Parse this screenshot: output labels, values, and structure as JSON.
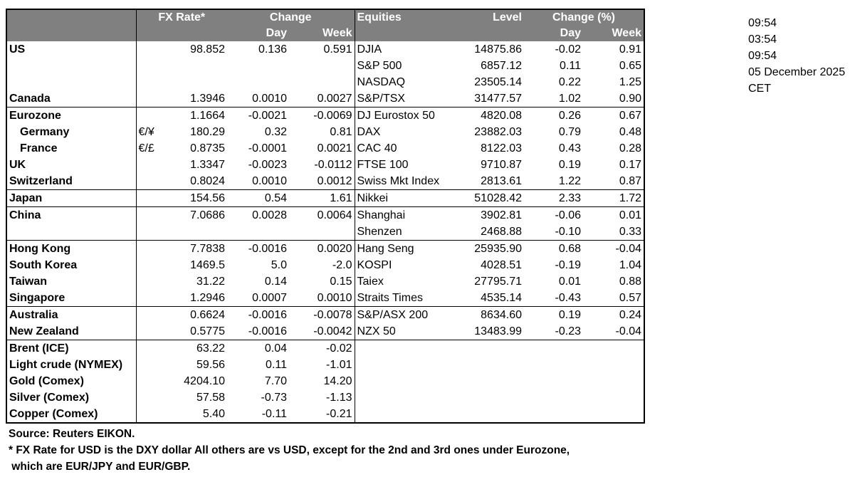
{
  "header": {
    "fx_rate": "FX Rate*",
    "change": "Change",
    "day": "Day",
    "week": "Week",
    "equities": "Equities",
    "level": "Level",
    "change_pct": "Change (%)",
    "eq_day": "Day",
    "eq_week": "Week"
  },
  "rows": [
    {
      "name": "US",
      "sym": "",
      "fx": "98.852",
      "day": "0.136",
      "week": "0.591",
      "eq": "DJIA",
      "level": "14875.86",
      "eqday": "-0.02",
      "eqweek": "0.91"
    },
    {
      "name": "",
      "sym": "",
      "fx": "",
      "day": "",
      "week": "",
      "eq": "S&P 500",
      "level": "6857.12",
      "eqday": "0.11",
      "eqweek": "0.65"
    },
    {
      "name": "",
      "sym": "",
      "fx": "",
      "day": "",
      "week": "",
      "eq": "NASDAQ",
      "level": "23505.14",
      "eqday": "0.22",
      "eqweek": "1.25"
    },
    {
      "name": "Canada",
      "sym": "",
      "fx": "1.3946",
      "day": "0.0010",
      "week": "0.0027",
      "eq": "S&P/TSX",
      "level": "31477.57",
      "eqday": "1.02",
      "eqweek": "0.90",
      "sep": true
    },
    {
      "name": "Eurozone",
      "sym": "",
      "fx": "1.1664",
      "day": "-0.0021",
      "week": "-0.0069",
      "eq": "DJ Eurostox 50",
      "level": "4820.08",
      "eqday": "0.26",
      "eqweek": "0.67"
    },
    {
      "name": "Germany",
      "indent": true,
      "sym": "€/¥",
      "fx": "180.29",
      "day": "0.32",
      "week": "0.81",
      "eq": "DAX",
      "level": "23882.03",
      "eqday": "0.79",
      "eqweek": "0.48"
    },
    {
      "name": "France",
      "indent": true,
      "sym": "€/£",
      "fx": "0.8735",
      "day": "-0.0001",
      "week": "0.0021",
      "eq": "CAC 40",
      "level": "8122.03",
      "eqday": "0.43",
      "eqweek": "0.28"
    },
    {
      "name": "UK",
      "sym": "",
      "fx": "1.3347",
      "day": "-0.0023",
      "week": "-0.0112",
      "eq": "FTSE 100",
      "level": "9710.87",
      "eqday": "0.19",
      "eqweek": "0.17"
    },
    {
      "name": "Switzerland",
      "sym": "",
      "fx": "0.8024",
      "day": "0.0010",
      "week": "0.0012",
      "eq": "Swiss Mkt Index",
      "level": "2813.61",
      "eqday": "1.22",
      "eqweek": "0.87",
      "sep": true
    },
    {
      "name": "Japan",
      "sym": "",
      "fx": "154.56",
      "day": "0.54",
      "week": "1.61",
      "eq": "Nikkei",
      "level": "51028.42",
      "eqday": "2.33",
      "eqweek": "1.72",
      "sep": true
    },
    {
      "name": "China",
      "sym": "",
      "fx": "7.0686",
      "day": "0.0028",
      "week": "0.0064",
      "eq": "Shanghai",
      "level": "3902.81",
      "eqday": "-0.06",
      "eqweek": "0.01"
    },
    {
      "name": "",
      "sym": "",
      "fx": "",
      "day": "",
      "week": "",
      "eq": "Shenzen",
      "level": "2468.88",
      "eqday": "-0.10",
      "eqweek": "0.33",
      "sep": true
    },
    {
      "name": "Hong Kong",
      "sym": "",
      "fx": "7.7838",
      "day": "-0.0016",
      "week": "0.0020",
      "eq": "Hang Seng",
      "level": "25935.90",
      "eqday": "0.68",
      "eqweek": "-0.04"
    },
    {
      "name": "South Korea",
      "sym": "",
      "fx": "1469.5",
      "day": "5.0",
      "week": "-2.0",
      "eq": "KOSPI",
      "level": "4028.51",
      "eqday": "-0.19",
      "eqweek": "1.04"
    },
    {
      "name": "Taiwan",
      "sym": "",
      "fx": "31.22",
      "day": "0.14",
      "week": "0.15",
      "eq": "Taiex",
      "level": "27795.71",
      "eqday": "0.01",
      "eqweek": "0.88"
    },
    {
      "name": "Singapore",
      "sym": "",
      "fx": "1.2946",
      "day": "0.0007",
      "week": "0.0010",
      "eq": "Straits Times",
      "level": "4535.14",
      "eqday": "-0.43",
      "eqweek": "0.57",
      "sep": true
    },
    {
      "name": "Australia",
      "sym": "",
      "fx": "0.6624",
      "day": "-0.0016",
      "week": "-0.0078",
      "eq": "S&P/ASX  200",
      "level": "8634.60",
      "eqday": "0.19",
      "eqweek": "0.24"
    },
    {
      "name": "New Zealand",
      "sym": "",
      "fx": "0.5775",
      "day": "-0.0016",
      "week": "-0.0042",
      "eq": "NZX 50",
      "level": "13483.99",
      "eqday": "-0.23",
      "eqweek": "-0.04",
      "sep": true
    },
    {
      "name": "Brent (ICE)",
      "sym": "",
      "fx": "63.22",
      "day": "0.04",
      "week": "-0.02",
      "eq": "",
      "level": "",
      "eqday": "",
      "eqweek": ""
    },
    {
      "name": "Light crude (NYMEX)",
      "sym": "",
      "fx": "59.56",
      "day": "0.11",
      "week": "-1.01",
      "eq": "",
      "level": "",
      "eqday": "",
      "eqweek": ""
    },
    {
      "name": "Gold (Comex)",
      "sym": "",
      "fx": "4204.10",
      "day": "7.70",
      "week": "14.20",
      "eq": "",
      "level": "",
      "eqday": "",
      "eqweek": ""
    },
    {
      "name": "Silver (Comex)",
      "sym": "",
      "fx": "57.58",
      "day": "-0.73",
      "week": "-1.13",
      "eq": "",
      "level": "",
      "eqday": "",
      "eqweek": ""
    },
    {
      "name": "Copper (Comex)",
      "sym": "",
      "fx": "5.40",
      "day": "-0.11",
      "week": "-0.21",
      "eq": "",
      "level": "",
      "eqday": "",
      "eqweek": ""
    }
  ],
  "side": [
    "09:54",
    "03:54",
    "09:54",
    "05 December 2025",
    "CET"
  ],
  "notes": {
    "source": "Source:  Reuters EIKON.",
    "footnote1": "* FX Rate for USD is the DXY dollar  All others are vs USD, except for the 2nd and 3rd ones under Eurozone,",
    "footnote2": " which are EUR/JPY and EUR/GBP."
  },
  "colors": {
    "header_bg": "#808080",
    "header_text": "#ffffff"
  }
}
